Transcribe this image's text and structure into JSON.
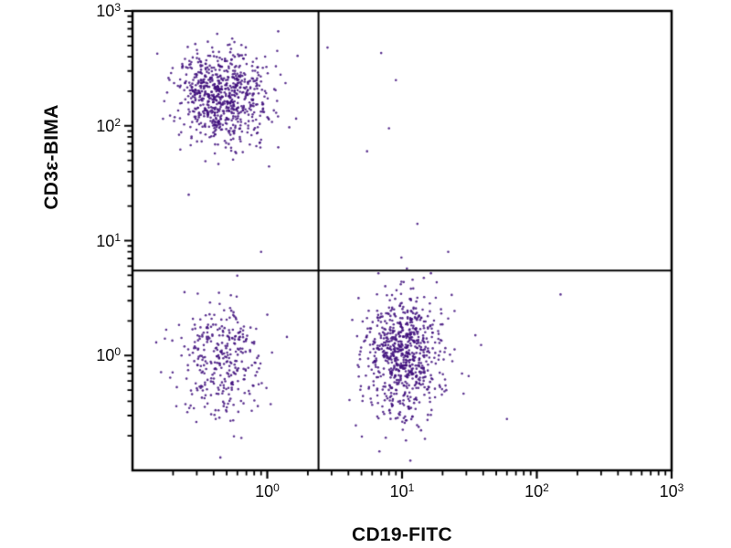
{
  "chart_data": {
    "type": "scatter",
    "title": "",
    "xlabel": "CD19-FITC",
    "ylabel": "CD3ε-BIMA",
    "x_scale": "log",
    "y_scale": "log",
    "xlim": [
      0.1,
      1000
    ],
    "ylim": [
      0.1,
      1000
    ],
    "x_major_tick_exponents": [
      0,
      1,
      2,
      3
    ],
    "y_major_tick_exponents": [
      0,
      1,
      2,
      3
    ],
    "grid": false,
    "legend": "none",
    "dot_color": "#3f0f7c",
    "dot_radius": 1.3,
    "dot_alpha": 0.85,
    "axis_color": "#000000",
    "quadrant_gate": {
      "x": 2.4,
      "y": 5.5
    },
    "seed": 1337,
    "clusters": [
      {
        "name": "upper-left-population",
        "center_log": [
          -0.33,
          2.24
        ],
        "sigma_log": [
          0.17,
          0.2
        ],
        "count": 750
      },
      {
        "name": "lower-left-population",
        "center_log": [
          -0.34,
          -0.06
        ],
        "sigma_log": [
          0.17,
          0.25
        ],
        "count": 330
      },
      {
        "name": "lower-right-population",
        "center_log": [
          1.01,
          0.0
        ],
        "sigma_log": [
          0.15,
          0.27
        ],
        "count": 760
      }
    ],
    "outliers": [
      [
        7,
        430
      ],
      [
        9,
        250
      ],
      [
        8,
        95
      ],
      [
        13,
        14
      ],
      [
        22,
        8
      ],
      [
        150,
        3.4
      ],
      [
        60,
        0.28
      ],
      [
        2.8,
        480
      ],
      [
        0.15,
        1.3
      ],
      [
        35,
        1.5
      ],
      [
        5.5,
        60
      ],
      [
        0.9,
        8
      ]
    ]
  }
}
